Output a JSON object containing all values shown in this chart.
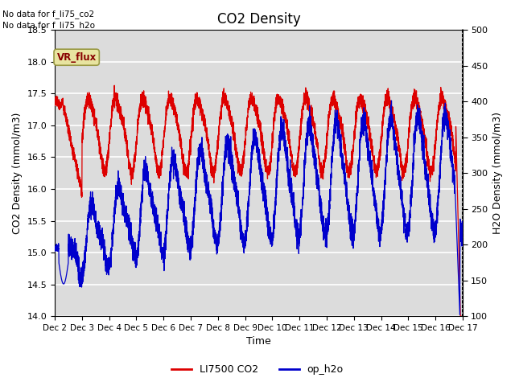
{
  "title": "CO2 Density",
  "xlabel": "Time",
  "ylabel_left": "CO2 Density (mmol/m3)",
  "ylabel_right": "H2O Density (mmol/m3)",
  "ylim_left": [
    14.0,
    18.5
  ],
  "ylim_right": [
    100,
    500
  ],
  "yticks_left": [
    14.0,
    14.5,
    15.0,
    15.5,
    16.0,
    16.5,
    17.0,
    17.5,
    18.0,
    18.5
  ],
  "yticks_right": [
    100,
    150,
    200,
    250,
    300,
    350,
    400,
    450,
    500
  ],
  "xtick_labels": [
    "Dec 2",
    "Dec 3",
    "Dec 4",
    "Dec 5",
    "Dec 6",
    "Dec 7",
    "Dec 8",
    "Dec 9",
    "Dec 10",
    "Dec 11",
    "Dec 12",
    "Dec 13",
    "Dec 14",
    "Dec 15",
    "Dec 16",
    "Dec 17"
  ],
  "legend_entries": [
    "LI7500 CO2",
    "op_h2o"
  ],
  "legend_colors": [
    "#dd0000",
    "#0000cc"
  ],
  "co2_color": "#dd0000",
  "h2o_color": "#0000cc",
  "background_color": "#ffffff",
  "plot_bg_color": "#dcdcdc",
  "grid_color": "#ffffff",
  "text_annotations": [
    "No data for f_li75_co2",
    "No data for f_li75_h2o"
  ],
  "vr_flux_label": "VR_flux",
  "vr_flux_bg": "#e8e4a0",
  "vr_flux_text": "#880000",
  "title_fontsize": 12,
  "axis_label_fontsize": 9,
  "tick_fontsize": 8,
  "xtick_fontsize": 7.5
}
